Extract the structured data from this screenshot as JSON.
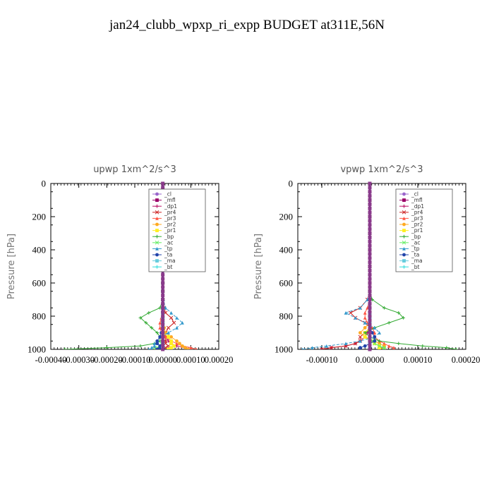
{
  "figure": {
    "title": "jan24_clubb_wpxp_ri_expp  BUDGET at311E,56N"
  },
  "legend_entries": [
    {
      "name": "_cl",
      "color": "#9a66cc"
    },
    {
      "name": "_mfl",
      "color": "#990066"
    },
    {
      "name": "_dp1",
      "color": "#bb1166"
    },
    {
      "name": "_pr4",
      "color": "#cc2222"
    },
    {
      "name": "_pr3",
      "color": "#ff5544"
    },
    {
      "name": "_pr2",
      "color": "#ffaa22"
    },
    {
      "name": "_pr1",
      "color": "#ffee22"
    },
    {
      "name": "_bp",
      "color": "#33aa33"
    },
    {
      "name": "_ac",
      "color": "#66ee66"
    },
    {
      "name": "_tp",
      "color": "#3399cc"
    },
    {
      "name": "_ta",
      "color": "#2244aa"
    },
    {
      "name": "_ma",
      "color": "#66ccdd"
    },
    {
      "name": "_bt",
      "color": "#33dddd"
    }
  ],
  "chart_data": [
    {
      "type": "line",
      "title": "upwp   1xm^2/s^3",
      "ylabel": "Pressure [hPa]",
      "ylim": [
        1000,
        0
      ],
      "xlim": [
        -0.0004,
        0.0002
      ],
      "xticks": [
        "-0.00040",
        "-0.00030",
        "-0.00020",
        "-0.00010",
        "0.00000",
        "0.00010",
        "0.00020"
      ],
      "yticks": [
        "0",
        "200",
        "400",
        "600",
        "800",
        "1000"
      ],
      "levels": [
        0,
        100,
        200,
        300,
        400,
        500,
        600,
        650,
        700,
        750,
        780,
        810,
        840,
        870,
        900,
        925,
        950,
        965,
        980,
        990,
        1000
      ],
      "series": [
        {
          "name": "_cl",
          "values": [
            0,
            0,
            0,
            0,
            0,
            0,
            0,
            0,
            0,
            0,
            0,
            0,
            0,
            0,
            0,
            0,
            0,
            0,
            0,
            0,
            0
          ]
        },
        {
          "name": "_mfl",
          "values": [
            0,
            0,
            0,
            0,
            0,
            0,
            0,
            0,
            0,
            0,
            0,
            0,
            0,
            0,
            0,
            0,
            0,
            0,
            0,
            0,
            0
          ]
        },
        {
          "name": "_dp1",
          "values": [
            0,
            0,
            0,
            0,
            0,
            0,
            0,
            0,
            0,
            0,
            0,
            0,
            0,
            0,
            5e-06,
            1e-05,
            2e-05,
            3e-05,
            5e-05,
            8e-05,
            0.0001
          ]
        },
        {
          "name": "_pr4",
          "values": [
            0,
            0,
            0,
            0,
            0,
            0,
            0,
            0,
            0,
            5e-06,
            1e-05,
            3e-05,
            4e-05,
            2e-05,
            1e-05,
            1e-05,
            1e-05,
            1e-05,
            2e-05,
            1e-05,
            0
          ]
        },
        {
          "name": "_pr3",
          "values": [
            0,
            0,
            0,
            0,
            0,
            0,
            0,
            0,
            0,
            0,
            0,
            -5e-06,
            -1e-05,
            -1e-05,
            -5e-06,
            1e-05,
            3e-05,
            5e-05,
            7e-05,
            0.0001,
            0.00012
          ]
        },
        {
          "name": "_pr2",
          "values": [
            0,
            0,
            0,
            0,
            0,
            0,
            0,
            0,
            0,
            0,
            0,
            0,
            0,
            5e-06,
            1e-05,
            3e-05,
            5e-05,
            6e-05,
            7e-05,
            8e-05,
            9e-05
          ]
        },
        {
          "name": "_pr1",
          "values": [
            0,
            0,
            0,
            0,
            0,
            0,
            0,
            0,
            0,
            0,
            0,
            0,
            0,
            0,
            0,
            2e-05,
            3e-05,
            3e-05,
            4e-05,
            3e-05,
            2e-05
          ]
        },
        {
          "name": "_bp",
          "values": [
            0,
            0,
            0,
            0,
            0,
            0,
            0,
            0,
            0,
            -1e-05,
            -5e-05,
            -8e-05,
            -6e-05,
            -4e-05,
            -2e-05,
            -1e-05,
            -1e-05,
            -3e-05,
            -8e-05,
            -0.0002,
            -0.00035
          ]
        },
        {
          "name": "_ac",
          "values": [
            0,
            0,
            0,
            0,
            0,
            0,
            0,
            0,
            0,
            0,
            0,
            0,
            0,
            0,
            0,
            0,
            0,
            -5e-06,
            -1e-05,
            -2e-05,
            -3e-05
          ]
        },
        {
          "name": "_tp",
          "values": [
            0,
            0,
            0,
            0,
            0,
            0,
            0,
            0,
            2e-06,
            1e-05,
            3e-05,
            5e-05,
            7e-05,
            5e-05,
            2e-05,
            -1e-05,
            -2e-05,
            -3e-05,
            -3e-05,
            -4e-05,
            -5e-05
          ]
        },
        {
          "name": "_ta",
          "values": [
            0,
            0,
            0,
            0,
            0,
            0,
            0,
            0,
            0,
            0,
            0,
            0,
            0,
            0,
            -5e-06,
            -1e-05,
            -2e-05,
            -2e-05,
            -1e-05,
            -1e-05,
            -2e-05
          ]
        },
        {
          "name": "_ma",
          "values": [
            0,
            0,
            0,
            0,
            0,
            0,
            0,
            0,
            0,
            0,
            0,
            0,
            0,
            0,
            0,
            0,
            0,
            0,
            0,
            0,
            0
          ]
        },
        {
          "name": "_bt",
          "values": [
            0,
            0,
            0,
            0,
            0,
            0,
            0,
            0,
            0,
            0,
            0,
            0,
            0,
            0,
            0,
            0,
            0,
            0,
            0,
            0,
            0
          ]
        }
      ]
    },
    {
      "type": "line",
      "title": "vpwp   1xm^2/s^3",
      "ylabel": "Pressure [hPa]",
      "ylim": [
        1000,
        0
      ],
      "xlim": [
        -0.00015,
        0.0002
      ],
      "xticks": [
        "-0.00010",
        "0.00000",
        "0.00010",
        "0.00020"
      ],
      "yticks": [
        "0",
        "200",
        "400",
        "600",
        "800",
        "1000"
      ],
      "levels": [
        0,
        100,
        200,
        300,
        400,
        500,
        600,
        650,
        700,
        750,
        780,
        810,
        840,
        870,
        900,
        925,
        950,
        965,
        980,
        990,
        1000
      ],
      "series": [
        {
          "name": "_cl",
          "values": [
            0,
            0,
            0,
            0,
            0,
            0,
            0,
            0,
            0,
            0,
            0,
            0,
            0,
            0,
            0,
            0,
            0,
            0,
            0,
            0,
            0
          ]
        },
        {
          "name": "_mfl",
          "values": [
            0,
            0,
            0,
            0,
            0,
            0,
            0,
            0,
            0,
            0,
            0,
            0,
            0,
            0,
            0,
            0,
            0,
            0,
            0,
            0,
            0
          ]
        },
        {
          "name": "_dp1",
          "values": [
            0,
            0,
            0,
            0,
            0,
            0,
            0,
            0,
            0,
            0,
            0,
            0,
            0,
            0,
            -5e-06,
            -1e-05,
            -2e-05,
            -3e-05,
            -5e-05,
            -8e-05,
            -0.0001
          ]
        },
        {
          "name": "_pr4",
          "values": [
            0,
            0,
            0,
            0,
            0,
            0,
            0,
            0,
            -5e-06,
            -2e-05,
            -4e-05,
            -3e-05,
            -1e-05,
            0,
            -1e-05,
            -2e-05,
            -2e-05,
            -3e-05,
            -5e-05,
            -8e-05,
            -0.0001
          ]
        },
        {
          "name": "_pr3",
          "values": [
            0,
            0,
            0,
            0,
            0,
            0,
            0,
            0,
            0,
            -5e-06,
            -1e-05,
            -1e-05,
            -5e-06,
            5e-06,
            1e-05,
            1e-05,
            2e-05,
            3e-05,
            4e-05,
            5e-05,
            5e-05
          ]
        },
        {
          "name": "_pr2",
          "values": [
            0,
            0,
            0,
            0,
            0,
            0,
            0,
            0,
            0,
            0,
            0,
            0,
            0,
            -1e-05,
            -2e-05,
            -1e-05,
            1e-05,
            2e-05,
            3e-05,
            3e-05,
            2e-05
          ]
        },
        {
          "name": "_pr1",
          "values": [
            0,
            0,
            0,
            0,
            0,
            0,
            0,
            0,
            0,
            0,
            0,
            0,
            0,
            0,
            -1e-05,
            -1e-05,
            0,
            1e-05,
            2e-05,
            2e-05,
            2e-05
          ]
        },
        {
          "name": "_bp",
          "values": [
            0,
            0,
            0,
            0,
            0,
            0,
            0,
            0,
            5e-06,
            3e-05,
            6e-05,
            7e-05,
            4e-05,
            1e-05,
            -1e-05,
            0,
            2e-05,
            6e-05,
            0.00011,
            0.00016,
            0.00018
          ]
        },
        {
          "name": "_ac",
          "values": [
            0,
            0,
            0,
            0,
            0,
            0,
            0,
            0,
            0,
            0,
            0,
            0,
            0,
            0,
            0,
            0,
            5e-06,
            1e-05,
            2e-05,
            3e-05,
            3e-05
          ]
        },
        {
          "name": "_tp",
          "values": [
            0,
            0,
            0,
            0,
            0,
            0,
            0,
            0,
            -5e-06,
            -2e-05,
            -5e-05,
            -3e-05,
            -1e-05,
            1e-05,
            2e-05,
            1e-05,
            -2e-05,
            -5e-05,
            -9e-05,
            -0.00012,
            -0.00014
          ]
        },
        {
          "name": "_ta",
          "values": [
            0,
            0,
            0,
            0,
            0,
            0,
            0,
            0,
            0,
            0,
            0,
            0,
            0,
            0,
            5e-06,
            1e-05,
            1e-05,
            0,
            -1e-05,
            -2e-05,
            -2e-05
          ]
        },
        {
          "name": "_ma",
          "values": [
            0,
            0,
            0,
            0,
            0,
            0,
            0,
            0,
            0,
            0,
            0,
            0,
            0,
            0,
            0,
            0,
            0,
            0,
            0,
            0,
            0
          ]
        },
        {
          "name": "_bt",
          "values": [
            0,
            0,
            0,
            0,
            0,
            0,
            0,
            0,
            0,
            0,
            0,
            0,
            0,
            0,
            0,
            0,
            0,
            0,
            0,
            0,
            0
          ]
        }
      ]
    }
  ]
}
